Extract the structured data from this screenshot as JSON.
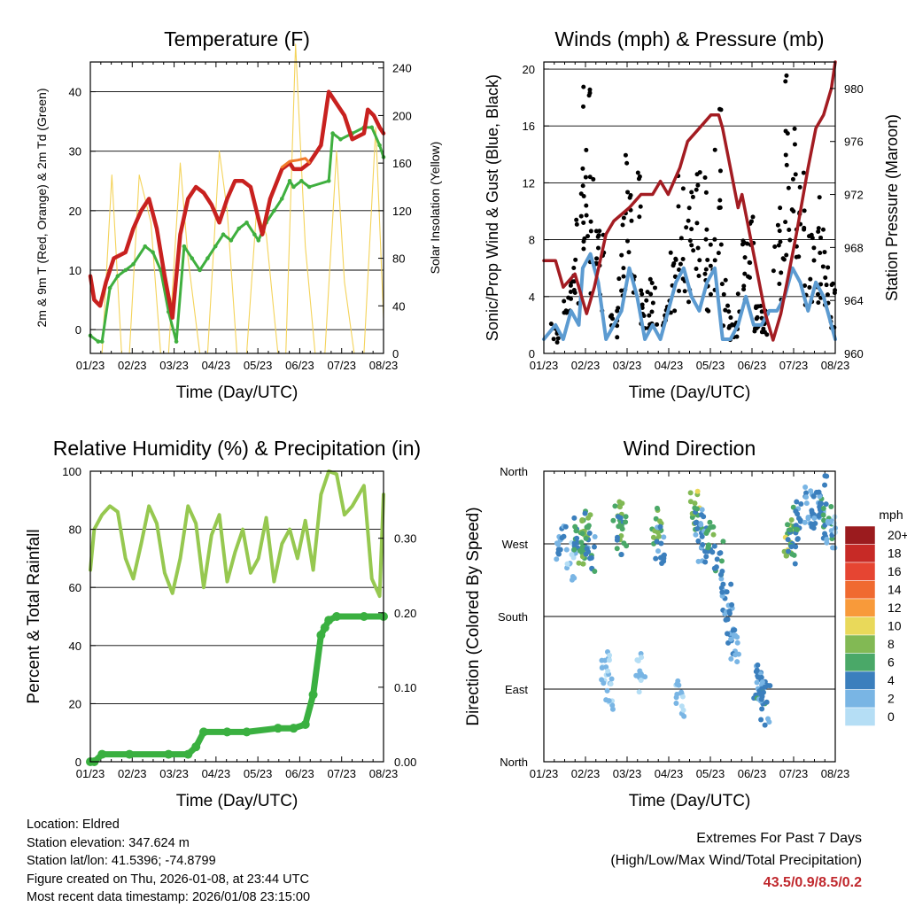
{
  "chart_data": [
    {
      "type": "line",
      "title": "Temperature (F)",
      "xlabel": "Time (Day/UTC)",
      "ylabel": "2m & 9m T (Red, Orange) & 2m Td (Green)",
      "ylabel_right": "Solar Insolation (Yellow)",
      "categories": [
        "01/23",
        "02/23",
        "03/23",
        "04/23",
        "05/23",
        "06/23",
        "07/23",
        "08/23"
      ],
      "ylim": [
        -4,
        45
      ],
      "yticks": [
        0,
        10,
        20,
        30,
        40
      ],
      "ylim_right": [
        0,
        245
      ],
      "yticks_right": [
        0,
        40,
        80,
        120,
        160,
        200,
        240
      ],
      "series": [
        {
          "name": "2m T",
          "color": "#c8211f",
          "x": [
            0,
            0.1,
            0.25,
            0.4,
            0.6,
            0.9,
            1.1,
            1.3,
            1.5,
            1.7,
            1.9,
            2.1,
            2.3,
            2.5,
            2.7,
            2.9,
            3.1,
            3.3,
            3.5,
            3.7,
            3.9,
            4.1,
            4.4,
            4.6,
            4.9,
            5.1,
            5.2,
            5.4,
            5.6,
            5.9,
            6.1,
            6.3,
            6.5,
            6.7,
            7.0,
            7.1,
            7.25,
            7.4,
            7.5
          ],
          "values": [
            9,
            5,
            4,
            8,
            12,
            13,
            17,
            20,
            22,
            17,
            9,
            2,
            16,
            22,
            24,
            23,
            21,
            18,
            22,
            25,
            25,
            24,
            16,
            22,
            27,
            28,
            27,
            27,
            28,
            31,
            40,
            38,
            36,
            32,
            33,
            37,
            36,
            34,
            33
          ]
        },
        {
          "name": "9m T",
          "color": "#f07a2b",
          "x": [
            4.9,
            5.1,
            5.3,
            5.5,
            5.6
          ],
          "values": [
            27.3,
            28.3,
            28.5,
            28.8,
            28.1
          ]
        },
        {
          "name": "2m Td",
          "color": "#3faf3f",
          "x": [
            0,
            0.2,
            0.3,
            0.5,
            0.7,
            0.9,
            1.1,
            1.4,
            1.6,
            1.8,
            2.0,
            2.2,
            2.4,
            2.6,
            2.8,
            3.0,
            3.2,
            3.4,
            3.6,
            3.8,
            4.0,
            4.2,
            4.3,
            4.5,
            4.7,
            4.9,
            5.1,
            5.2,
            5.4,
            5.6,
            6.1,
            6.2,
            6.4,
            6.7,
            7.0,
            7.2,
            7.4,
            7.5
          ],
          "values": [
            -1,
            -2,
            -2,
            7,
            9,
            10,
            11,
            14,
            13,
            10,
            3,
            -2,
            14,
            12,
            10,
            12,
            14,
            16,
            15,
            17,
            18,
            16,
            15,
            18,
            20,
            22,
            25,
            24,
            25,
            24,
            25,
            33,
            32,
            33,
            34,
            34,
            31,
            29
          ]
        },
        {
          "name": "Solar Insolation",
          "color": "#f4d35a",
          "axis": "right",
          "x": [
            0.3,
            0.55,
            0.8,
            1.0,
            1.25,
            1.55,
            1.8,
            2.0,
            2.3,
            2.5,
            2.8,
            3.0,
            3.3,
            3.5,
            3.75,
            4.0,
            4.25,
            4.5,
            4.8,
            5.0,
            5.25,
            5.5,
            5.75,
            6.0,
            6.3,
            6.5,
            6.75,
            7.0,
            7.3,
            7.5
          ],
          "values": [
            0,
            150,
            0,
            0,
            150,
            110,
            0,
            0,
            160,
            80,
            0,
            0,
            170,
            120,
            0,
            0,
            120,
            100,
            0,
            0,
            260,
            90,
            0,
            0,
            170,
            60,
            0,
            0,
            190,
            30
          ]
        }
      ]
    },
    {
      "type": "line",
      "title": "Winds (mph) & Pressure (mb)",
      "xlabel": "Time (Day/UTC)",
      "ylabel": "Sonic/Prop Wind & Gust (Blue, Black)",
      "ylabel_right": "Station Pressure (Maroon)",
      "categories": [
        "01/23",
        "02/23",
        "03/23",
        "04/23",
        "05/23",
        "06/23",
        "07/23",
        "08/23"
      ],
      "ylim": [
        0,
        20.5
      ],
      "yticks": [
        0,
        4,
        8,
        12,
        16,
        20
      ],
      "ylim_right": [
        960,
        982
      ],
      "yticks_right": [
        960,
        964,
        968,
        972,
        976,
        980
      ],
      "series": [
        {
          "name": "Wind",
          "color": "#5c9bd1",
          "x": [
            0,
            0.3,
            0.5,
            0.7,
            0.9,
            1.0,
            1.2,
            1.4,
            1.6,
            1.8,
            2.0,
            2.2,
            2.4,
            2.6,
            2.8,
            3.0,
            3.2,
            3.4,
            3.6,
            3.8,
            4.0,
            4.2,
            4.4,
            4.6,
            4.8,
            5.0,
            5.2,
            5.4,
            5.6,
            5.8,
            6.0,
            6.2,
            6.4,
            6.6,
            6.8,
            7.0,
            7.2,
            7.4,
            7.5
          ],
          "values": [
            1,
            2,
            1,
            3,
            2,
            6,
            7,
            5,
            1,
            2,
            3,
            6,
            4,
            1,
            2,
            1,
            3,
            5,
            6,
            4,
            3,
            5,
            6,
            1,
            1,
            2,
            4,
            2,
            2,
            3,
            3,
            4,
            6,
            5,
            3,
            5,
            4,
            2,
            1
          ]
        },
        {
          "name": "Gust",
          "color": "#000000",
          "x": [
            0.3,
            0.6,
            0.8,
            1.0,
            1.1,
            1.3,
            1.5,
            1.8,
            2.0,
            2.2,
            2.4,
            2.6,
            2.8,
            3.1,
            3.3,
            3.5,
            3.7,
            3.9,
            4.1,
            4.3,
            4.5,
            4.7,
            4.9,
            5.1,
            5.3,
            5.5,
            5.7,
            6.0,
            6.2,
            6.4,
            6.6,
            6.8,
            7.0,
            7.2,
            7.4
          ],
          "values": [
            2,
            5,
            9,
            15,
            18,
            12,
            8,
            3,
            9,
            15,
            12,
            4,
            5,
            3,
            7,
            12,
            10,
            14,
            12,
            8,
            16,
            5,
            2,
            8,
            10,
            4,
            3,
            10,
            18,
            15,
            12,
            9,
            10,
            8,
            5
          ]
        },
        {
          "name": "Station Pressure",
          "color": "#a31c22",
          "axis": "right",
          "x": [
            0,
            0.3,
            0.5,
            0.8,
            1.0,
            1.1,
            1.3,
            1.6,
            1.8,
            2.2,
            2.5,
            2.8,
            3.0,
            3.2,
            3.5,
            3.7,
            4.0,
            4.3,
            4.5,
            4.6,
            4.8,
            5.0,
            5.1,
            5.3,
            5.5,
            5.7,
            5.9,
            6.1,
            6.3,
            6.5,
            6.8,
            7.0,
            7.2,
            7.4,
            7.5
          ],
          "values": [
            967,
            967,
            965,
            966,
            964,
            963,
            965,
            969,
            970,
            971,
            972,
            972,
            973,
            972,
            974,
            976,
            977,
            978,
            978,
            977,
            974,
            971,
            972,
            969,
            966,
            963,
            961,
            963,
            966,
            969,
            974,
            977,
            978,
            980,
            982
          ]
        }
      ]
    },
    {
      "type": "line",
      "title": "Relative Humidity (%) & Precipitation (in)",
      "xlabel": "Time (Day/UTC)",
      "ylabel": "Percent & Total Rainfall",
      "categories": [
        "01/23",
        "02/23",
        "03/23",
        "04/23",
        "05/23",
        "06/23",
        "07/23",
        "08/23"
      ],
      "ylim": [
        0,
        100
      ],
      "yticks": [
        0,
        20,
        40,
        60,
        80,
        100
      ],
      "ylim_right": [
        0,
        0.39
      ],
      "yticks_right": [
        "0.00",
        "0.10",
        "0.20",
        "0.30"
      ],
      "series": [
        {
          "name": "Relative Humidity",
          "color": "#96c850",
          "x": [
            0,
            0.1,
            0.3,
            0.5,
            0.7,
            0.9,
            1.1,
            1.3,
            1.5,
            1.7,
            1.9,
            2.1,
            2.3,
            2.5,
            2.7,
            2.9,
            3.1,
            3.3,
            3.5,
            3.7,
            3.9,
            4.1,
            4.3,
            4.5,
            4.7,
            4.9,
            5.1,
            5.3,
            5.5,
            5.7,
            5.9,
            6.1,
            6.3,
            6.5,
            6.7,
            7.0,
            7.2,
            7.4,
            7.5
          ],
          "values": [
            66,
            80,
            85,
            88,
            86,
            70,
            63,
            75,
            88,
            82,
            65,
            58,
            70,
            88,
            82,
            60,
            78,
            85,
            62,
            72,
            80,
            65,
            70,
            84,
            62,
            75,
            80,
            70,
            83,
            66,
            92,
            100,
            99,
            85,
            88,
            95,
            63,
            57,
            92
          ]
        },
        {
          "name": "Total Precipitation",
          "color": "#3ab040",
          "axis": "right",
          "x": [
            0,
            0.1,
            0.3,
            1.0,
            2.0,
            2.5,
            2.7,
            2.9,
            3.5,
            4.0,
            4.8,
            5.2,
            5.5,
            5.7,
            5.9,
            6.0,
            6.1,
            6.3,
            7.0,
            7.5
          ],
          "values": [
            0,
            0,
            0.01,
            0.01,
            0.01,
            0.01,
            0.02,
            0.04,
            0.04,
            0.04,
            0.045,
            0.045,
            0.05,
            0.09,
            0.17,
            0.18,
            0.19,
            0.195,
            0.195,
            0.195
          ]
        }
      ]
    },
    {
      "type": "scatter",
      "title": "Wind Direction",
      "xlabel": "Time (Day/UTC)",
      "ylabel": "Direction (Colored By Speed)",
      "categories": [
        "01/23",
        "02/23",
        "03/23",
        "04/23",
        "05/23",
        "06/23",
        "07/23",
        "08/23"
      ],
      "yticks": [
        "North",
        "West",
        "South",
        "East",
        "North"
      ],
      "legend_title": "mph",
      "legend_labels": [
        "20+",
        "18",
        "16",
        "14",
        "12",
        "10",
        "8",
        "6",
        "4",
        "2",
        "0"
      ],
      "legend_colors": [
        "#9b1b1e",
        "#c72a26",
        "#e64532",
        "#f06a30",
        "#f89a3a",
        "#e9d95a",
        "#82b954",
        "#4aa868",
        "#3b7fbd",
        "#79b5e4",
        "#b5def5"
      ],
      "clusters": [
        {
          "x": 0.45,
          "dir": 270,
          "spd": 3
        },
        {
          "x": 0.7,
          "dir": 250,
          "spd": 2
        },
        {
          "x": 0.9,
          "dir": 280,
          "spd": 5
        },
        {
          "x": 1.0,
          "dir": 270,
          "spd": 7
        },
        {
          "x": 1.1,
          "dir": 290,
          "spd": 6
        },
        {
          "x": 1.2,
          "dir": 260,
          "spd": 4
        },
        {
          "x": 1.6,
          "dir": 120,
          "spd": 1
        },
        {
          "x": 1.7,
          "dir": 90,
          "spd": 1
        },
        {
          "x": 1.9,
          "dir": 300,
          "spd": 7
        },
        {
          "x": 2.0,
          "dir": 280,
          "spd": 5
        },
        {
          "x": 2.5,
          "dir": 110,
          "spd": 1
        },
        {
          "x": 2.9,
          "dir": 290,
          "spd": 7
        },
        {
          "x": 3.0,
          "dir": 270,
          "spd": 3
        },
        {
          "x": 3.5,
          "dir": 80,
          "spd": 1
        },
        {
          "x": 3.9,
          "dir": 310,
          "spd": 8
        },
        {
          "x": 4.0,
          "dir": 290,
          "spd": 4
        },
        {
          "x": 4.1,
          "dir": 270,
          "spd": 3
        },
        {
          "x": 4.3,
          "dir": 280,
          "spd": 6
        },
        {
          "x": 4.5,
          "dir": 250,
          "spd": 4
        },
        {
          "x": 4.7,
          "dir": 200,
          "spd": 3
        },
        {
          "x": 4.8,
          "dir": 170,
          "spd": 3
        },
        {
          "x": 4.9,
          "dir": 140,
          "spd": 2
        },
        {
          "x": 5.5,
          "dir": 100,
          "spd": 3
        },
        {
          "x": 5.6,
          "dir": 80,
          "spd": 4
        },
        {
          "x": 5.7,
          "dir": 70,
          "spd": 3
        },
        {
          "x": 6.3,
          "dir": 280,
          "spd": 8
        },
        {
          "x": 6.4,
          "dir": 270,
          "spd": 5
        },
        {
          "x": 6.5,
          "dir": 300,
          "spd": 4
        },
        {
          "x": 6.8,
          "dir": 320,
          "spd": 3
        },
        {
          "x": 7.0,
          "dir": 310,
          "spd": 3
        },
        {
          "x": 7.2,
          "dir": 330,
          "spd": 4
        },
        {
          "x": 7.3,
          "dir": 300,
          "spd": 5
        },
        {
          "x": 7.4,
          "dir": 280,
          "spd": 2
        }
      ]
    }
  ],
  "info": {
    "location": "Location: Eldred",
    "elevation": "Station elevation: 347.624 m",
    "latlon": "Station lat/lon: 41.5396; -74.8799",
    "created": "Figure created on Thu, 2026-01-08, at 23:44 UTC",
    "recent": "Most recent data timestamp: 2026/01/08 23:15:00"
  },
  "extremes": {
    "title": "Extremes For Past 7 Days",
    "subtitle": "(High/Low/Max Wind/Total Precipitation)",
    "values": "43.5/0.9/8.5/0.2"
  }
}
